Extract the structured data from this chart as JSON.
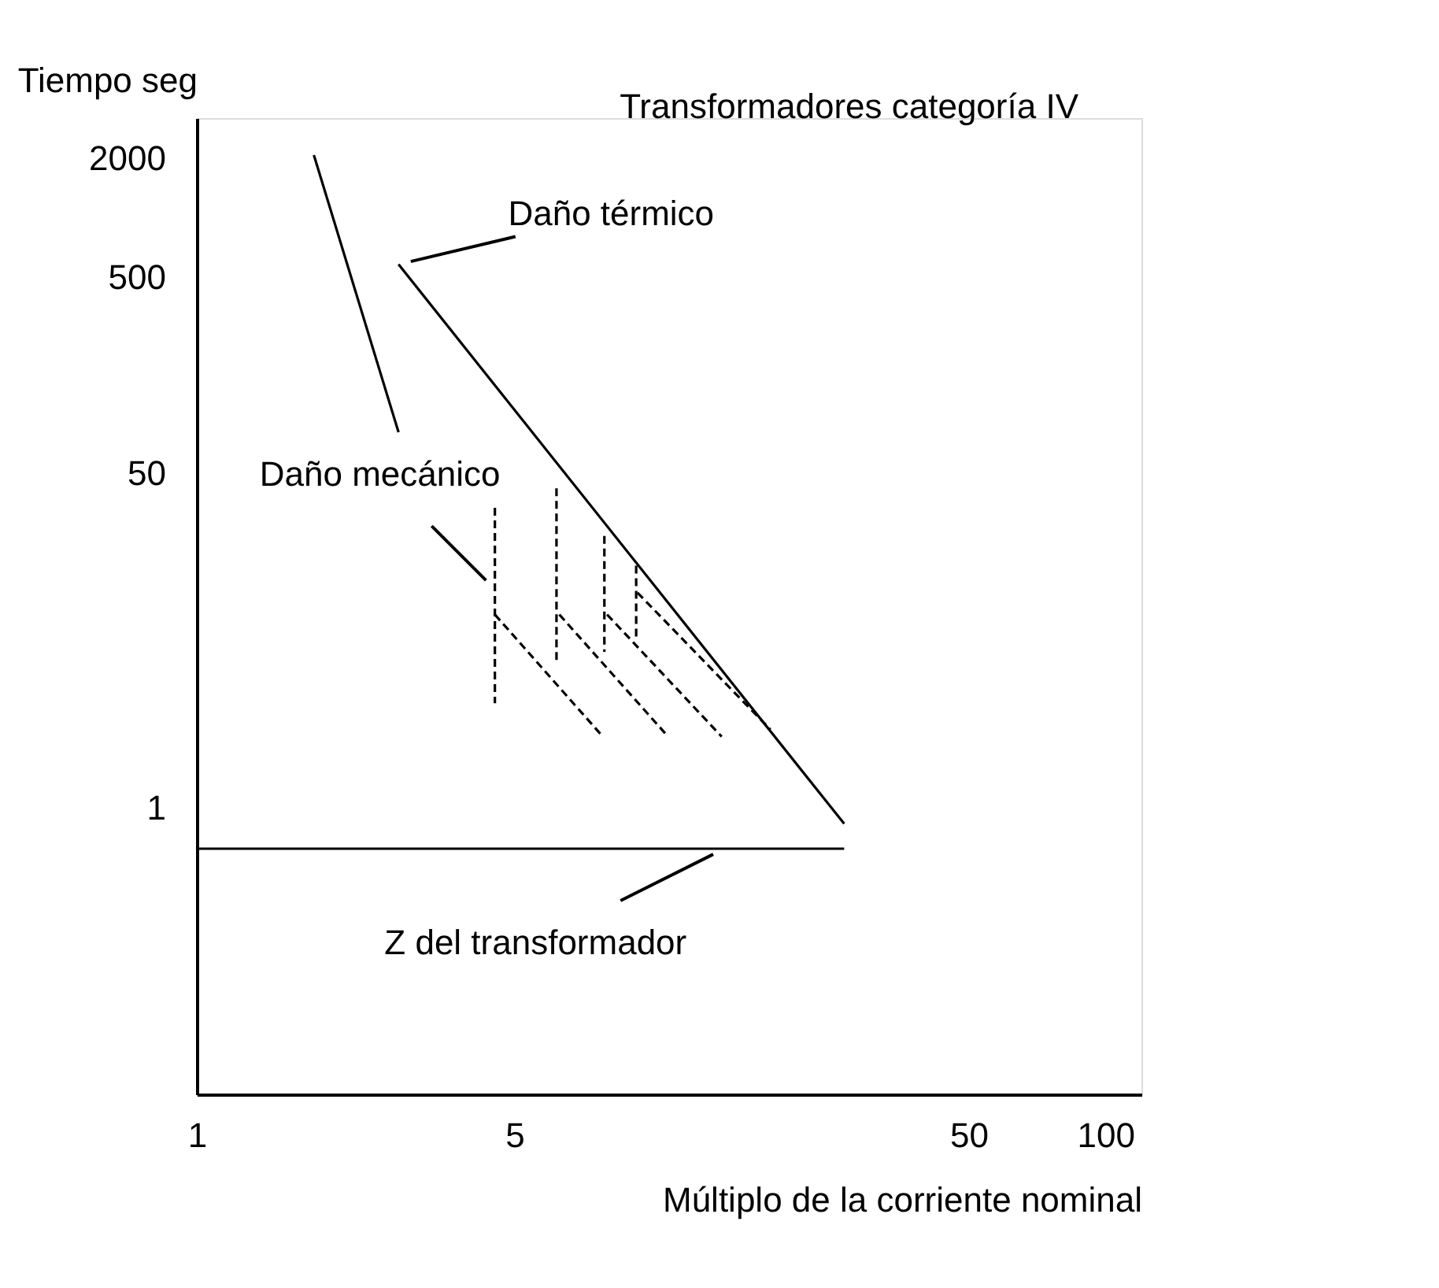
{
  "chart_data": {
    "type": "line",
    "title": "Transformadores categoría IV",
    "xlabel": "Múltiplo de la corriente nominal",
    "ylabel": "Tiempo seg",
    "log": "xy",
    "xlim": [
      1,
      120
    ],
    "ylim": [
      0.035,
      3200
    ],
    "xticks": [
      1,
      5,
      50,
      100
    ],
    "yticks": [
      1,
      50,
      500,
      2000
    ],
    "grid": false,
    "series": [
      {
        "color": "#000000",
        "line_style": "solid",
        "x": [
          1.81,
          2.78
        ],
        "values": [
          2075,
          81
        ]
      },
      {
        "color": "#000000",
        "line_style": "solid",
        "x": [
          2.78,
          26.6
        ],
        "values": [
          578,
          0.83
        ]
      },
      {
        "color": "#000000",
        "line_style": "solid",
        "x": [
          1,
          26.6
        ],
        "values": [
          0.62,
          0.62
        ]
      },
      {
        "color": "#000000",
        "line_style": "dashed",
        "x": [
          4.53,
          4.53
        ],
        "values": [
          33.5,
          3.4
        ]
      },
      {
        "color": "#000000",
        "line_style": "dashed",
        "x": [
          6.19,
          6.19
        ],
        "values": [
          42,
          5.5
        ]
      },
      {
        "color": "#000000",
        "line_style": "dashed",
        "x": [
          7.89,
          7.89
        ],
        "values": [
          24.1,
          6.2
        ]
      },
      {
        "color": "#000000",
        "line_style": "dashed",
        "x": [
          9.27,
          9.27
        ],
        "values": [
          17,
          7.1
        ]
      },
      {
        "color": "#000000",
        "line_style": "dashed",
        "x": [
          4.53,
          7.83
        ],
        "values": [
          9.6,
          2.3
        ]
      },
      {
        "color": "#000000",
        "line_style": "dashed",
        "x": [
          6.28,
          10.9
        ],
        "values": [
          9.6,
          2.3
        ]
      },
      {
        "color": "#000000",
        "line_style": "dashed",
        "x": [
          8.0,
          14.3
        ],
        "values": [
          9.6,
          2.3
        ]
      },
      {
        "color": "#000000",
        "line_style": "dashed",
        "x": [
          9.33,
          18.3
        ],
        "values": [
          12.4,
          2.5
        ]
      }
    ],
    "annotations": [
      {
        "text": "Daño térmico",
        "x": 2.78,
        "y": 578
      },
      {
        "text": "Daño mecánico",
        "x": 4.53,
        "y": 12.9
      },
      {
        "text": "Z del transformador",
        "x": 14.5,
        "y": 0.62
      }
    ]
  }
}
